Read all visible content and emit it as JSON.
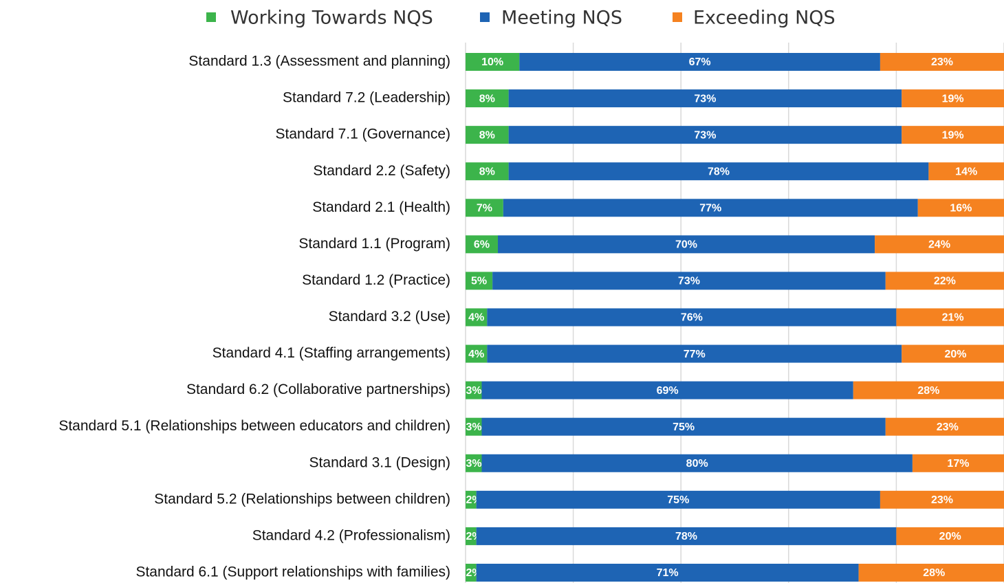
{
  "chart_data": {
    "type": "stacked-bar-horizontal",
    "categories": [
      "Standard 1.3 (Assessment and planning)",
      "Standard 7.2 (Leadership)",
      "Standard 7.1 (Governance)",
      "Standard 2.2 (Safety)",
      "Standard 2.1 (Health)",
      "Standard 1.1 (Program)",
      "Standard 1.2 (Practice)",
      "Standard 3.2 (Use)",
      "Standard 4.1 (Staffing arrangements)",
      "Standard 6.2 (Collaborative partnerships)",
      "Standard 5.1 (Relationships between educators and children)",
      "Standard 3.1 (Design)",
      "Standard 5.2 (Relationships between children)",
      "Standard 4.2 (Professionalism)",
      "Standard 6.1 (Support relationships with families)"
    ],
    "series": [
      {
        "name": "Working Towards NQS",
        "color": "#3cb44b",
        "values": [
          10,
          8,
          8,
          8,
          7,
          6,
          5,
          4,
          4,
          3,
          3,
          3,
          2,
          2,
          2
        ],
        "value_labels": [
          "10%",
          "8%",
          "8%",
          "8%",
          "7%",
          "6%",
          "5%",
          "4%",
          "4%",
          "3%",
          "3%",
          "3%",
          "2%",
          "2%",
          "2%"
        ]
      },
      {
        "name": "Meeting NQS",
        "color": "#1e64b4",
        "values": [
          67,
          73,
          73,
          78,
          77,
          70,
          73,
          76,
          77,
          69,
          75,
          80,
          75,
          78,
          71
        ],
        "value_labels": [
          "67%",
          "73%",
          "73%",
          "78%",
          "77%",
          "70%",
          "73%",
          "76%",
          "77%",
          "69%",
          "75%",
          "80%",
          "75%",
          "78%",
          "71%"
        ]
      },
      {
        "name": "Exceeding NQS",
        "color": "#f58220",
        "values": [
          23,
          19,
          19,
          14,
          16,
          24,
          22,
          21,
          20,
          28,
          23,
          17,
          23,
          20,
          28
        ],
        "value_labels": [
          "23%",
          "19%",
          "19%",
          "14%",
          "16%",
          "24%",
          "22%",
          "21%",
          "20%",
          "28%",
          "23%",
          "17%",
          "23%",
          "20%",
          "28%"
        ]
      }
    ],
    "xlim": [
      0,
      100
    ],
    "xticks": [
      0,
      20,
      40,
      60,
      80,
      100
    ],
    "grid": true,
    "legend": "top"
  }
}
